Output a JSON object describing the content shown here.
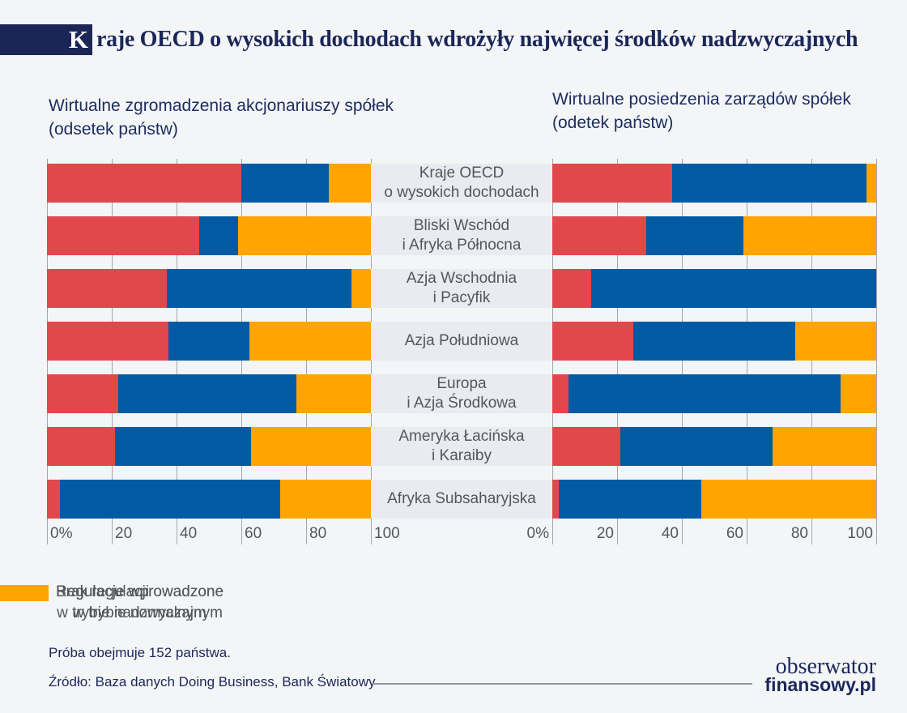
{
  "page": {
    "background": "#f4f5f7"
  },
  "header": {
    "title_first_letter": "K",
    "title_rest": "raje OECD o wysokich dochodach wdrożyły najwięcej środków nadzwyczajnych"
  },
  "chart_data": {
    "type": "bar",
    "orientation": "horizontal",
    "stacked": true,
    "value_unit": "odsetek państw (%)",
    "xlim": [
      0,
      100
    ],
    "x_ticks": [
      "0%",
      "20",
      "40",
      "60",
      "80",
      "100"
    ],
    "grid": true,
    "categories": [
      [
        "Kraje OECD",
        "o wysokich dochodach"
      ],
      [
        "Bliski Wschód",
        "i Afryka Północna"
      ],
      [
        "Azja Wschodnia",
        "i Pacyfik"
      ],
      [
        "Azja Południowa"
      ],
      [
        "Europa",
        "i Azja Środkowa"
      ],
      [
        "Ameryka Łacińska",
        "i Karaiby"
      ],
      [
        "Afryka Subsaharyjska"
      ]
    ],
    "series_names": [
      "Regulacje wprowadzone w trybie nadzwyczajnym",
      "Regulacje wprowadzone w trybie normalnym",
      "Brak regulacji"
    ],
    "series_colors": [
      "#e2474c",
      "#005ba4",
      "#ffa502"
    ],
    "panels": [
      {
        "title_line1": "Wirtualne zgromadzenia akcjonariuszy spółek",
        "title_line2": "(odsetek państw)",
        "series": [
          {
            "name": "Regulacje wprowadzone w trybie nadzwyczajnym",
            "values": [
              60,
              47,
              37,
              37.5,
              22,
              21,
              4
            ]
          },
          {
            "name": "Regulacje wprowadzone w trybie normalnym",
            "values": [
              27,
              12,
              57,
              25,
              55,
              42,
              68
            ]
          },
          {
            "name": "Brak regulacji",
            "values": [
              13,
              41,
              6,
              37.5,
              23,
              37,
              28
            ]
          }
        ]
      },
      {
        "title_line1": "Wirtualne posiedzenia zarządów spółek",
        "title_line2": "(odetek państw)",
        "series": [
          {
            "name": "Regulacje wprowadzone w trybie nadzwyczajnym",
            "values": [
              37,
              29,
              12,
              25,
              5,
              21,
              2
            ]
          },
          {
            "name": "Regulacje wprowadzone w trybie normalnym",
            "values": [
              60,
              30,
              88,
              50,
              84,
              47,
              44
            ]
          },
          {
            "name": "Brak regulacji",
            "values": [
              3,
              41,
              0,
              25,
              11,
              32,
              54
            ]
          }
        ]
      }
    ]
  },
  "legend": {
    "items": [
      {
        "color": "#e2474c",
        "line1": "Regulacje wprowadzone",
        "line2": "w trybie nadzwyczajnym"
      },
      {
        "color": "#005ba4",
        "line1": "Regulacje wprowadzone",
        "line2": "w trybie normalnym"
      },
      {
        "color": "#ffa502",
        "line1": "Brak regulacji",
        "line2": ""
      }
    ]
  },
  "footer": {
    "sample_note": "Próba obejmuje 152 państwa.",
    "source": "Źródło: Baza danych Doing Business, Bank Światowy",
    "logo_line1": "obserwator",
    "logo_line2": "finansowy.pl"
  }
}
